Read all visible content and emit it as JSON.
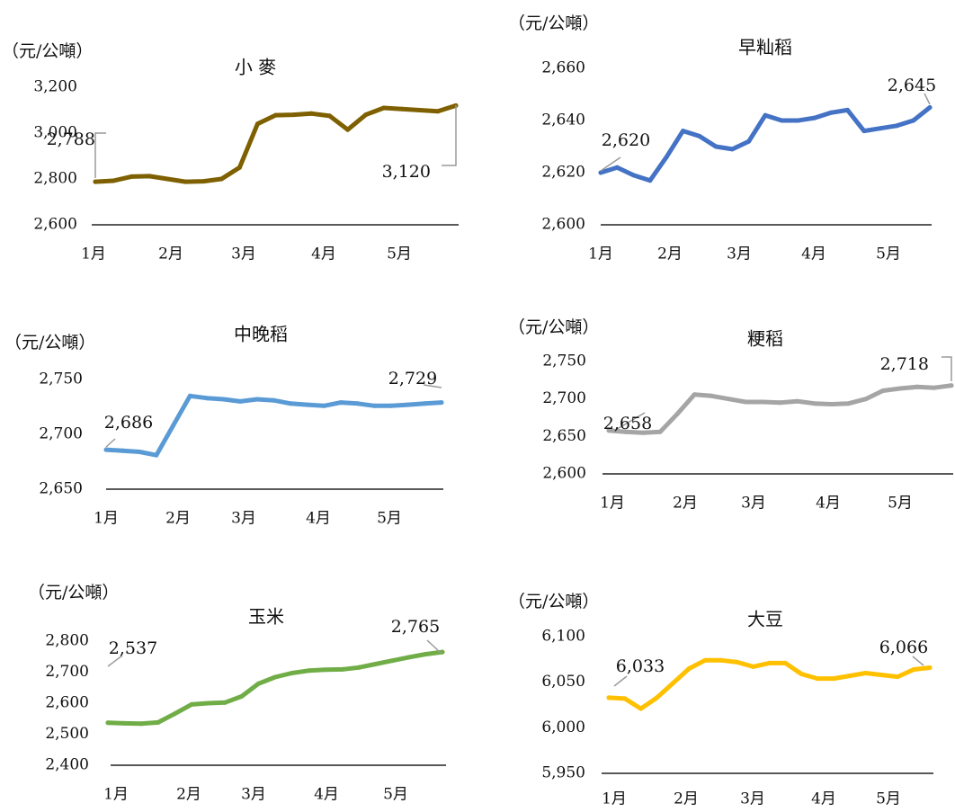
{
  "chart_data": [
    {
      "type": "line",
      "unit": "（元/公噸）",
      "title": "小 麥",
      "color": "#7f6000",
      "x_ticks": [
        "1月",
        "2月",
        "3月",
        "4月",
        "5月"
      ],
      "y_ticks": [
        "2,600",
        "2,800",
        "3,000",
        "3,200"
      ],
      "ylim": [
        2600,
        3200
      ],
      "values": [
        2788,
        2792,
        2810,
        2812,
        2800,
        2788,
        2790,
        2800,
        2850,
        3040,
        3078,
        3080,
        3085,
        3075,
        3015,
        3080,
        3110,
        3105,
        3100,
        3095,
        3120
      ],
      "start_label": "2,788",
      "end_label": "3,120"
    },
    {
      "type": "line",
      "unit": "（元/公噸）",
      "title": "早籼稻",
      "color": "#4472c4",
      "x_ticks": [
        "1月",
        "2月",
        "3月",
        "4月",
        "5月"
      ],
      "y_ticks": [
        "2,600",
        "2,620",
        "2,640",
        "2,660"
      ],
      "ylim": [
        2600,
        2660
      ],
      "values": [
        2620,
        2622,
        2619,
        2617,
        2626,
        2636,
        2634,
        2630,
        2629,
        2632,
        2642,
        2640,
        2640,
        2641,
        2643,
        2644,
        2636,
        2637,
        2638,
        2640,
        2645
      ],
      "start_label": "2,620",
      "end_label": "2,645"
    },
    {
      "type": "line",
      "unit": "（元/公噸）",
      "title": "中晚稻",
      "color": "#5b9bd5",
      "x_ticks": [
        "1月",
        "2月",
        "3月",
        "4月",
        "5月"
      ],
      "y_ticks": [
        "2,650",
        "2,700",
        "2,750"
      ],
      "ylim": [
        2650,
        2750
      ],
      "values": [
        2686,
        2685,
        2684,
        2681,
        2708,
        2735,
        2733,
        2732,
        2730,
        2732,
        2731,
        2728,
        2727,
        2726,
        2729,
        2728,
        2726,
        2726,
        2727,
        2728,
        2729
      ],
      "start_label": "2,686",
      "end_label": "2,729"
    },
    {
      "type": "line",
      "unit": "（元/公噸）",
      "title": "粳稻",
      "color": "#a5a5a5",
      "x_ticks": [
        "1月",
        "2月",
        "3月",
        "4月",
        "5月"
      ],
      "y_ticks": [
        "2,600",
        "2,650",
        "2,700",
        "2,750"
      ],
      "ylim": [
        2600,
        2750
      ],
      "values": [
        2658,
        2656,
        2655,
        2656,
        2680,
        2706,
        2704,
        2700,
        2696,
        2696,
        2695,
        2697,
        2694,
        2693,
        2694,
        2700,
        2711,
        2714,
        2716,
        2715,
        2718
      ],
      "start_label": "2,658",
      "end_label": "2,718"
    },
    {
      "type": "line",
      "unit": "（元/公噸）",
      "title": "玉米",
      "color": "#70ad47",
      "x_ticks": [
        "1月",
        "2月",
        "3月",
        "4月",
        "5月"
      ],
      "y_ticks": [
        "2,400",
        "2,500",
        "2,600",
        "2,700",
        "2,800"
      ],
      "ylim": [
        2400,
        2800
      ],
      "values": [
        2537,
        2535,
        2534,
        2538,
        2566,
        2596,
        2600,
        2602,
        2622,
        2663,
        2684,
        2697,
        2705,
        2708,
        2709,
        2715,
        2726,
        2737,
        2748,
        2758,
        2765
      ],
      "start_label": "2,537",
      "end_label": "2,765"
    },
    {
      "type": "line",
      "unit": "（元/公噸）",
      "title": "大豆",
      "color": "#ffc000",
      "x_ticks": [
        "1月",
        "2月",
        "3月",
        "4月",
        "5月"
      ],
      "y_ticks": [
        "5,950",
        "6,000",
        "6,050",
        "6,100"
      ],
      "ylim": [
        5950,
        6100
      ],
      "values": [
        6033,
        6032,
        6021,
        6033,
        6049,
        6065,
        6074,
        6074,
        6072,
        6067,
        6071,
        6071,
        6059,
        6054,
        6054,
        6057,
        6060,
        6058,
        6056,
        6064,
        6066
      ],
      "start_label": "6,033",
      "end_label": "6,066"
    }
  ]
}
